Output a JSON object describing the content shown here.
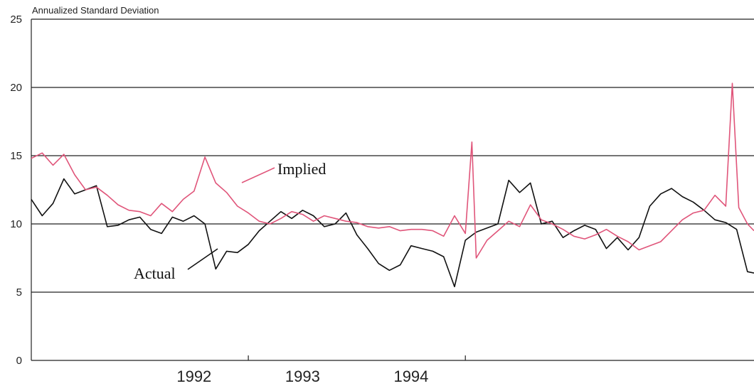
{
  "chart_data": {
    "type": "line",
    "title": "",
    "ylabel": "Annualized Standard Deviation",
    "xlabel": "",
    "ylim": [
      0,
      25
    ],
    "yticks": [
      0,
      5,
      10,
      15,
      20,
      25
    ],
    "xlim": [
      1991.5,
      1994.83
    ],
    "xtick_labels": [
      {
        "label": "1992",
        "x": 2
      },
      {
        "label": "1993",
        "x": 3
      },
      {
        "label": "1994",
        "x": 4
      }
    ],
    "grid": true,
    "series": [
      {
        "name": "Implied",
        "color": "#e0557a",
        "x": [
          1991.5,
          1991.55,
          1991.6,
          1991.65,
          1991.7,
          1991.75,
          1991.8,
          1991.85,
          1991.9,
          1991.95,
          1992.0,
          1992.05,
          1992.1,
          1992.15,
          1992.2,
          1992.25,
          1992.3,
          1992.35,
          1992.4,
          1992.45,
          1992.5,
          1992.55,
          1992.6,
          1992.65,
          1992.7,
          1992.75,
          1992.8,
          1992.85,
          1992.9,
          1992.95,
          1993.0,
          1993.05,
          1993.1,
          1993.15,
          1993.2,
          1993.25,
          1993.3,
          1993.35,
          1993.4,
          1993.45,
          1993.5,
          1993.53,
          1993.55,
          1993.6,
          1993.65,
          1993.7,
          1993.75,
          1993.8,
          1993.85,
          1993.9,
          1993.95,
          1994.0,
          1994.05,
          1994.1,
          1994.15,
          1994.2,
          1994.25,
          1994.3,
          1994.35,
          1994.4,
          1994.45,
          1994.5,
          1994.55,
          1994.6,
          1994.65,
          1994.7,
          1994.73,
          1994.76,
          1994.8,
          1994.83
        ],
        "values": [
          14.8,
          15.2,
          14.3,
          15.1,
          13.6,
          12.5,
          12.7,
          12.1,
          11.4,
          11.0,
          10.9,
          10.6,
          11.5,
          10.9,
          11.8,
          12.4,
          14.9,
          13.0,
          12.3,
          11.3,
          10.8,
          10.2,
          10.0,
          10.4,
          10.9,
          10.7,
          10.2,
          10.6,
          10.4,
          10.2,
          10.1,
          9.8,
          9.7,
          9.8,
          9.5,
          9.6,
          9.6,
          9.5,
          9.1,
          10.6,
          9.3,
          16.0,
          7.5,
          8.8,
          9.5,
          10.2,
          9.8,
          11.4,
          10.3,
          10.0,
          9.6,
          9.1,
          8.9,
          9.2,
          9.6,
          9.1,
          8.7,
          8.1,
          8.4,
          8.7,
          9.5,
          10.3,
          10.8,
          11.0,
          12.1,
          11.3,
          20.3,
          11.2,
          10.0,
          9.5
        ]
      },
      {
        "name": "Actual",
        "color": "#111111",
        "x": [
          1991.5,
          1991.55,
          1991.6,
          1991.65,
          1991.7,
          1991.75,
          1991.8,
          1991.85,
          1991.9,
          1991.95,
          1992.0,
          1992.05,
          1992.1,
          1992.15,
          1992.2,
          1992.25,
          1992.3,
          1992.35,
          1992.4,
          1992.45,
          1992.5,
          1992.55,
          1992.6,
          1992.65,
          1992.7,
          1992.75,
          1992.8,
          1992.85,
          1992.9,
          1992.95,
          1993.0,
          1993.05,
          1993.1,
          1993.15,
          1993.2,
          1993.25,
          1993.3,
          1993.35,
          1993.4,
          1993.45,
          1993.5,
          1993.55,
          1993.6,
          1993.65,
          1993.7,
          1993.75,
          1993.8,
          1993.85,
          1993.9,
          1993.95,
          1994.0,
          1994.05,
          1994.1,
          1994.15,
          1994.2,
          1994.25,
          1994.3,
          1994.35,
          1994.4,
          1994.45,
          1994.5,
          1994.55,
          1994.6,
          1994.65,
          1994.7,
          1994.75,
          1994.8,
          1994.83
        ],
        "values": [
          11.8,
          10.6,
          11.5,
          13.3,
          12.2,
          12.5,
          12.8,
          9.8,
          9.9,
          10.3,
          10.5,
          9.6,
          9.3,
          10.5,
          10.2,
          10.6,
          10.0,
          6.7,
          8.0,
          7.9,
          8.5,
          9.5,
          10.2,
          10.9,
          10.4,
          11.0,
          10.6,
          9.8,
          10.0,
          10.8,
          9.2,
          8.2,
          7.1,
          6.6,
          7.0,
          8.4,
          8.2,
          8.0,
          7.6,
          5.4,
          8.8,
          9.4,
          9.7,
          10.0,
          13.2,
          12.3,
          13.0,
          10.0,
          10.2,
          9.0,
          9.5,
          9.9,
          9.6,
          8.2,
          9.0,
          8.1,
          9.0,
          11.3,
          12.2,
          12.6,
          12.0,
          11.6,
          11.0,
          10.3,
          10.1,
          9.6,
          6.5,
          6.4
        ]
      }
    ],
    "annotations": [
      {
        "text": "Implied",
        "series": "Implied"
      },
      {
        "text": "Actual",
        "series": "Actual"
      }
    ]
  }
}
